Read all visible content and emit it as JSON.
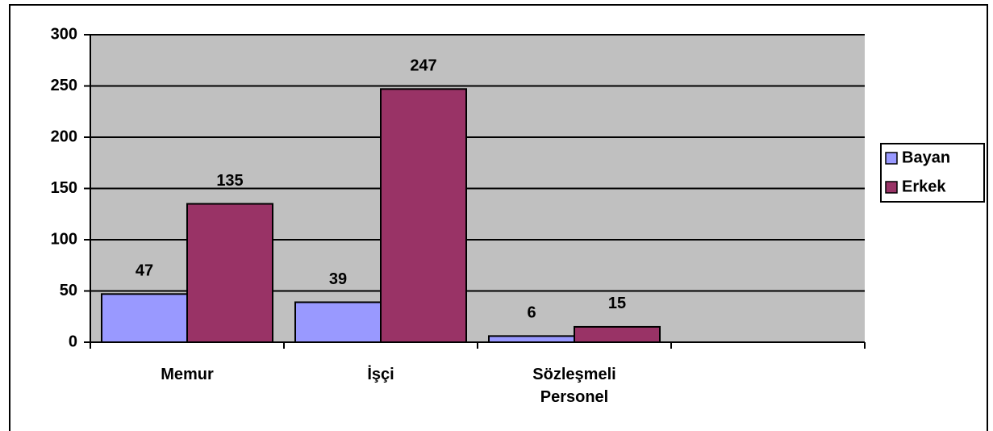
{
  "chart_data": {
    "type": "bar",
    "categories": [
      "Memur",
      "İşçi",
      "Sözleşmeli Personel",
      null
    ],
    "series": [
      {
        "name": "Bayan",
        "color": "#9999ff",
        "values": [
          47,
          39,
          6,
          null
        ]
      },
      {
        "name": "Erkek",
        "color": "#993366",
        "values": [
          135,
          247,
          15,
          null
        ]
      }
    ],
    "ylim": [
      0,
      300
    ],
    "yticks": [
      0,
      50,
      100,
      150,
      200,
      250,
      300
    ],
    "grid": true,
    "legend": "right",
    "plot_background": "#c0c0c0"
  }
}
